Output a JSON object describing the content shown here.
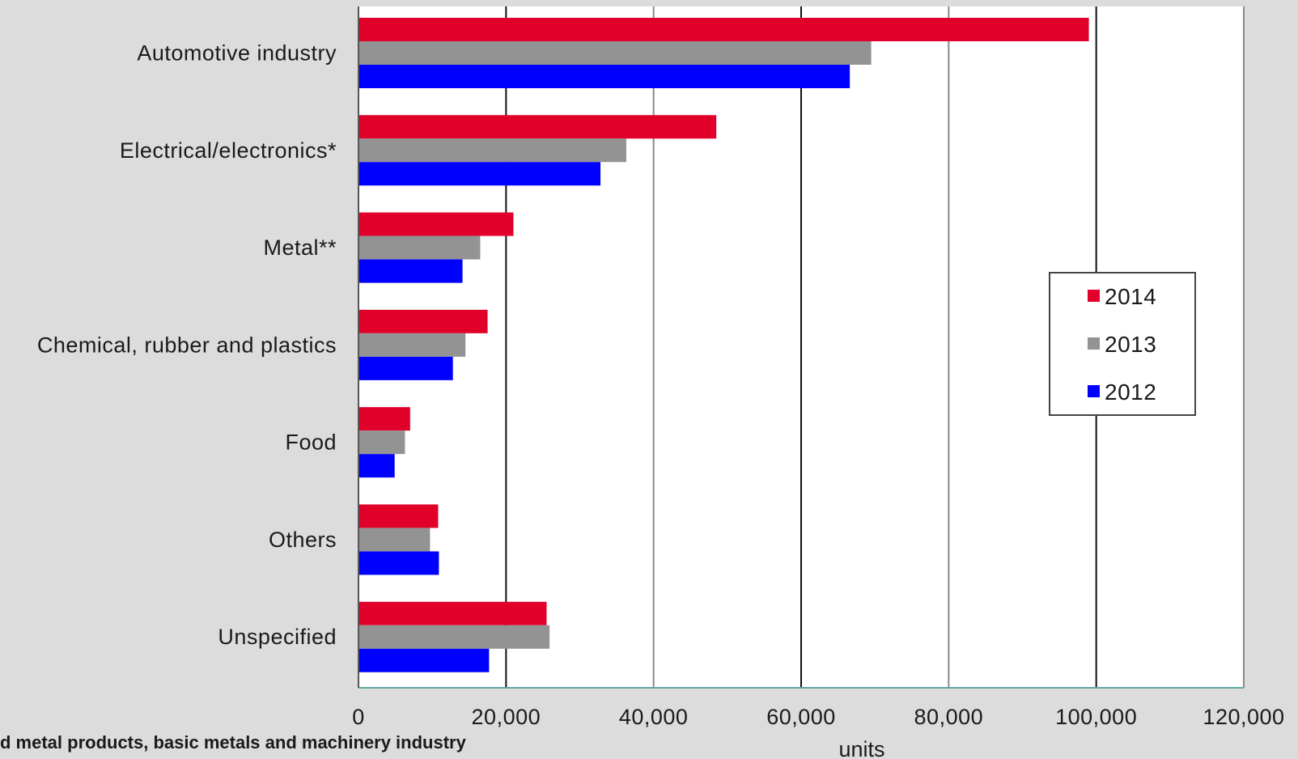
{
  "chart_data": {
    "type": "bar",
    "orientation": "horizontal",
    "categories": [
      "Automotive industry",
      "Electrical/electronics*",
      "Metal**",
      "Chemical, rubber and plastics",
      "Food",
      "Others",
      "Unspecified"
    ],
    "series": [
      {
        "name": "2014",
        "color": "#e0002a",
        "values": [
          99000,
          48500,
          21000,
          17500,
          7000,
          10800,
          25500
        ]
      },
      {
        "name": "2013",
        "color": "#939393",
        "values": [
          69500,
          36300,
          16500,
          14500,
          6300,
          9700,
          25900
        ]
      },
      {
        "name": "2012",
        "color": "#0000ff",
        "values": [
          66600,
          32800,
          14100,
          12800,
          4900,
          10900,
          17700
        ]
      }
    ],
    "xlabel": "units",
    "xlim": [
      0,
      120000
    ],
    "xticks": [
      0,
      20000,
      40000,
      60000,
      80000,
      100000,
      120000
    ],
    "xtick_labels": [
      "0",
      "20,000",
      "40,000",
      "60,000",
      "80,000",
      "100,000",
      "120,000"
    ],
    "grid": true,
    "legend_position": "right",
    "plot_background": "#ffffff",
    "page_background": "#dcdcdc"
  },
  "footnote": "d metal products, basic metals and machinery industry"
}
